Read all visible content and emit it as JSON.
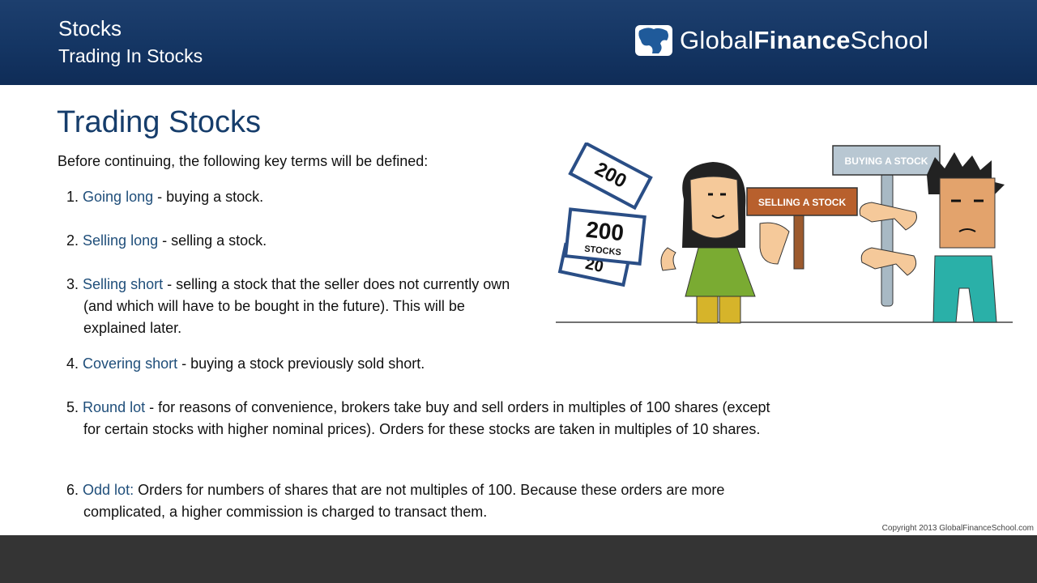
{
  "header": {
    "section": "Stocks",
    "subsection": "Trading In Stocks",
    "logo": {
      "part1": "Global",
      "part2": "Finance",
      "part3": "School"
    }
  },
  "main": {
    "title": "Trading Stocks",
    "intro": "Before continuing, the following key terms will be defined:",
    "terms": [
      {
        "num": "1.",
        "name": "Going long",
        "desc": " - buying a stock."
      },
      {
        "num": "2.",
        "name": "Selling long",
        "desc": " - selling a stock."
      },
      {
        "num": "3.",
        "name": "Selling short",
        "desc": " - selling a stock that the seller does not currently own (and which will have to be bought in the future).  This will be explained later."
      },
      {
        "num": "4.",
        "name": "Covering short",
        "desc": " - buying a stock previously sold short."
      },
      {
        "num": "5.",
        "name": "Round lot",
        "desc": " - for reasons of convenience, brokers take buy and sell orders in multiples of 100 shares (except for certain stocks with higher nominal prices).  Orders for these stocks are taken in multiples of 10 shares."
      },
      {
        "num": "6.",
        "name": "Odd lot:",
        "desc": " Orders for numbers of shares that are not multiples of 100. Because these orders are more complicated, a higher commission is charged to transact them."
      }
    ]
  },
  "illustration": {
    "buying_sign": "BUYING A STOCK",
    "selling_sign": "SELLING A STOCK",
    "cert_number": "200",
    "cert_label": "STOCKS"
  },
  "footer": {
    "copyright": "Copyright 2013 GlobalFinanceSchool.com"
  },
  "colors": {
    "header": "#143563",
    "term": "#1f4e7a",
    "title": "#163d6b",
    "footer": "#343434"
  }
}
